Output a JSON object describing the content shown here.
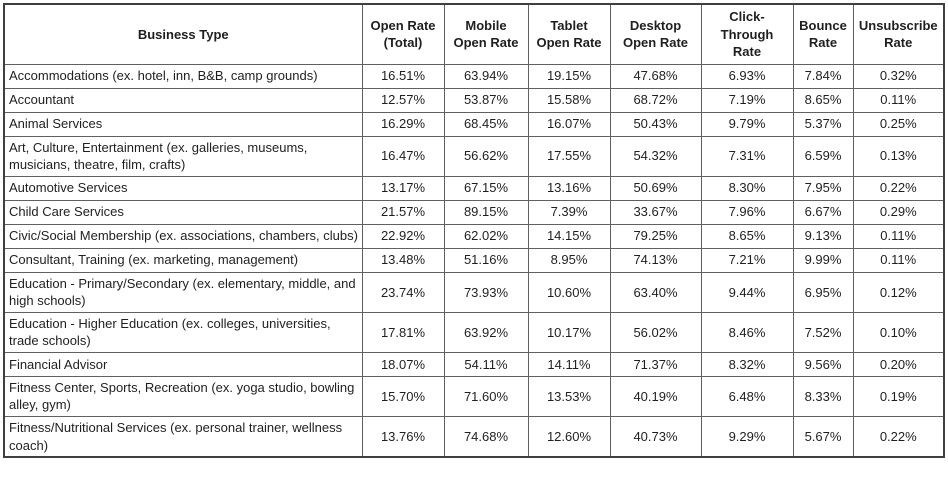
{
  "accent_colors": {
    "border_outer": "#3f3f3f",
    "border_inner": "#606060",
    "text": "#1f1f1f",
    "background": "#ffffff"
  },
  "table": {
    "columns": [
      {
        "label": "Business Type"
      },
      {
        "label": "Open Rate\n(Total)"
      },
      {
        "label": "Mobile\nOpen Rate"
      },
      {
        "label": "Tablet\nOpen Rate"
      },
      {
        "label": "Desktop\nOpen Rate"
      },
      {
        "label": "Click-\nThrough\nRate"
      },
      {
        "label": "Bounce\nRate"
      },
      {
        "label": "Unsubscribe\nRate"
      }
    ],
    "rows": [
      {
        "business_type": "Accommodations (ex. hotel, inn, B&B, camp grounds)",
        "values": [
          "16.51%",
          "63.94%",
          "19.15%",
          "47.68%",
          "6.93%",
          "7.84%",
          "0.32%"
        ]
      },
      {
        "business_type": "Accountant",
        "values": [
          "12.57%",
          "53.87%",
          "15.58%",
          "68.72%",
          "7.19%",
          "8.65%",
          "0.11%"
        ]
      },
      {
        "business_type": "Animal Services",
        "values": [
          "16.29%",
          "68.45%",
          "16.07%",
          "50.43%",
          "9.79%",
          "5.37%",
          "0.25%"
        ]
      },
      {
        "business_type": "Art, Culture, Entertainment (ex. galleries, museums, musicians, theatre, film, crafts)",
        "values": [
          "16.47%",
          "56.62%",
          "17.55%",
          "54.32%",
          "7.31%",
          "6.59%",
          "0.13%"
        ]
      },
      {
        "business_type": "Automotive Services",
        "values": [
          "13.17%",
          "67.15%",
          "13.16%",
          "50.69%",
          "8.30%",
          "7.95%",
          "0.22%"
        ]
      },
      {
        "business_type": "Child Care Services",
        "values": [
          "21.57%",
          "89.15%",
          "7.39%",
          "33.67%",
          "7.96%",
          "6.67%",
          "0.29%"
        ]
      },
      {
        "business_type": "Civic/Social Membership (ex. associations, chambers, clubs)",
        "values": [
          "22.92%",
          "62.02%",
          "14.15%",
          "79.25%",
          "8.65%",
          "9.13%",
          "0.11%"
        ]
      },
      {
        "business_type": "Consultant, Training (ex. marketing, management)",
        "values": [
          "13.48%",
          "51.16%",
          "8.95%",
          "74.13%",
          "7.21%",
          "9.99%",
          "0.11%"
        ]
      },
      {
        "business_type": "Education - Primary/Secondary (ex. elementary, middle, and high schools)",
        "values": [
          "23.74%",
          "73.93%",
          "10.60%",
          "63.40%",
          "9.44%",
          "6.95%",
          "0.12%"
        ]
      },
      {
        "business_type": "Education - Higher Education (ex. colleges, universities, trade schools)",
        "values": [
          "17.81%",
          "63.92%",
          "10.17%",
          "56.02%",
          "8.46%",
          "7.52%",
          "0.10%"
        ]
      },
      {
        "business_type": "Financial Advisor",
        "values": [
          "18.07%",
          "54.11%",
          "14.11%",
          "71.37%",
          "8.32%",
          "9.56%",
          "0.20%"
        ]
      },
      {
        "business_type": "Fitness Center, Sports, Recreation (ex. yoga studio, bowling alley, gym)",
        "values": [
          "15.70%",
          "71.60%",
          "13.53%",
          "40.19%",
          "6.48%",
          "8.33%",
          "0.19%"
        ]
      },
      {
        "business_type": "Fitness/Nutritional Services (ex. personal trainer, wellness coach)",
        "values": [
          "13.76%",
          "74.68%",
          "12.60%",
          "40.73%",
          "9.29%",
          "5.67%",
          "0.22%"
        ]
      }
    ]
  }
}
